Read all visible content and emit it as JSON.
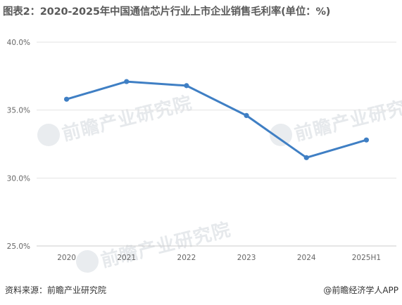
{
  "title": "图表2：2020-2025年中国通信芯片行业上市企业销售毛利率(单位：%)",
  "footer": {
    "source": "资料来源：前瞻产业研究院",
    "credit": "@前瞻经济学人APP"
  },
  "watermark": {
    "text": "前瞻产业研究院",
    "icon": "qianzhan-logo-icon"
  },
  "colors": {
    "line": "#3f7fc4",
    "grid": "#e3e3e3",
    "axis": "#cccccc",
    "tick_text": "#666666"
  },
  "chart_data": {
    "type": "line",
    "title": "图表2：2020-2025年中国通信芯片行业上市企业销售毛利率(单位：%)",
    "categories": [
      "2020",
      "2021",
      "2022",
      "2023",
      "2024",
      "2025H1"
    ],
    "series": [
      {
        "values": [
          35.8,
          37.1,
          36.8,
          34.6,
          31.5,
          32.8
        ]
      }
    ],
    "ylim": [
      25,
      40
    ],
    "yticks": [
      25,
      30,
      35,
      40
    ],
    "ytick_labels": [
      "25.0%",
      "30.0%",
      "35.0%",
      "40.0%"
    ],
    "xlabel": "",
    "ylabel": "",
    "grid": true,
    "legend": "none"
  }
}
